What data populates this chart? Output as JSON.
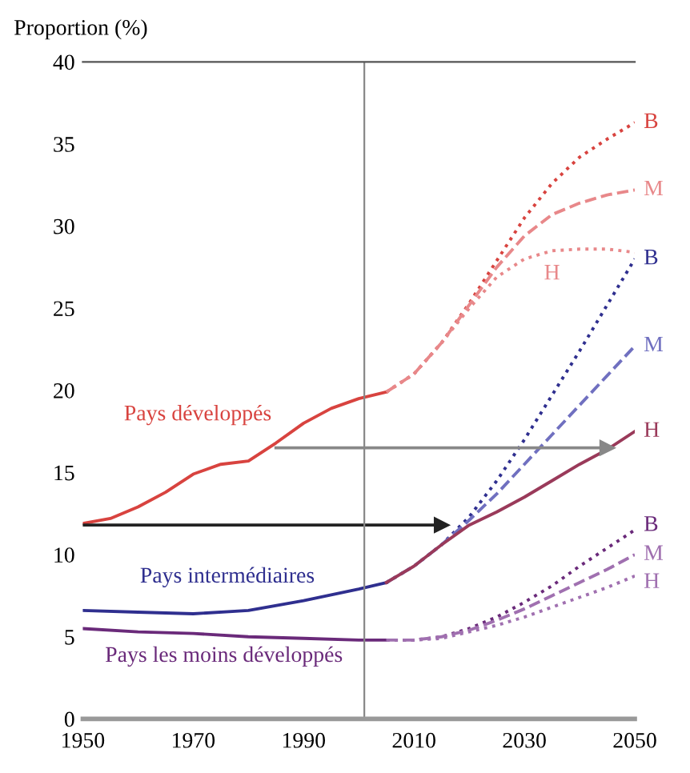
{
  "chart_data": {
    "type": "line",
    "ylabel": "Proportion (%)",
    "xlim": [
      1950,
      2050
    ],
    "ylim": [
      0,
      40
    ],
    "xticks": [
      1950,
      1970,
      1990,
      2010,
      2030,
      2050
    ],
    "yticks": [
      0,
      5,
      10,
      15,
      20,
      25,
      30,
      35,
      40
    ],
    "grid": false,
    "legend": false,
    "series": [
      {
        "name": "Pays développés",
        "color": "#d8433f",
        "line_style": "solid",
        "x": [
          1950,
          1955,
          1960,
          1965,
          1970,
          1975,
          1980,
          1985,
          1990,
          1995,
          2000,
          2005
        ],
        "values": [
          11.9,
          12.2,
          12.9,
          13.8,
          14.9,
          15.5,
          15.7,
          16.8,
          18.0,
          18.9,
          19.5,
          19.9
        ]
      },
      {
        "name": "B",
        "color": "#d8433f",
        "line_style": "dotted",
        "x": [
          2005,
          2010,
          2015,
          2020,
          2025,
          2030,
          2035,
          2040,
          2045,
          2050
        ],
        "values": [
          19.9,
          21.0,
          22.9,
          25.3,
          27.9,
          30.5,
          32.6,
          34.2,
          35.3,
          36.3
        ]
      },
      {
        "name": "M",
        "color": "#e8888a",
        "line_style": "dashed",
        "x": [
          2005,
          2010,
          2015,
          2020,
          2025,
          2030,
          2035,
          2040,
          2045,
          2050
        ],
        "values": [
          19.9,
          21.0,
          22.9,
          25.2,
          27.5,
          29.4,
          30.7,
          31.4,
          31.9,
          32.2
        ]
      },
      {
        "name": "H",
        "color": "#e8888a",
        "line_style": "dotted",
        "x": [
          2005,
          2010,
          2015,
          2020,
          2025,
          2030,
          2035,
          2040,
          2045,
          2050
        ],
        "values": [
          19.9,
          21.0,
          22.9,
          25.0,
          26.9,
          28.0,
          28.5,
          28.6,
          28.6,
          28.4
        ]
      },
      {
        "name": "Pays intermédiaires",
        "color": "#2f2f8f",
        "line_style": "solid",
        "x": [
          1950,
          1960,
          1970,
          1980,
          1990,
          2000,
          2005
        ],
        "values": [
          6.6,
          6.5,
          6.4,
          6.6,
          7.2,
          7.9,
          8.3
        ]
      },
      {
        "name": "B",
        "color": "#2f2f8f",
        "line_style": "dotted",
        "x": [
          2005,
          2010,
          2015,
          2020,
          2025,
          2030,
          2035,
          2040,
          2045,
          2050
        ],
        "values": [
          8.3,
          9.3,
          10.6,
          12.3,
          14.5,
          17.0,
          19.7,
          22.4,
          25.2,
          28.0
        ]
      },
      {
        "name": "M",
        "color": "#7070c0",
        "line_style": "dashed",
        "x": [
          2005,
          2010,
          2015,
          2020,
          2025,
          2030,
          2035,
          2040,
          2045,
          2050
        ],
        "values": [
          8.3,
          9.3,
          10.6,
          12.1,
          13.7,
          15.5,
          17.3,
          19.1,
          20.9,
          22.7
        ]
      },
      {
        "name": "H",
        "color": "#9a3a5a",
        "line_style": "solid",
        "x": [
          2005,
          2010,
          2015,
          2020,
          2025,
          2030,
          2035,
          2040,
          2045,
          2050
        ],
        "values": [
          8.3,
          9.3,
          10.6,
          11.8,
          12.6,
          13.5,
          14.5,
          15.5,
          16.4,
          17.5
        ]
      },
      {
        "name": "Pays les moins développés",
        "color": "#6a2a7a",
        "line_style": "solid",
        "x": [
          1950,
          1960,
          1970,
          1980,
          1990,
          2000,
          2005
        ],
        "values": [
          5.5,
          5.3,
          5.2,
          5.0,
          4.9,
          4.8,
          4.8
        ]
      },
      {
        "name": "B",
        "color": "#6a2a7a",
        "line_style": "dotted",
        "x": [
          2005,
          2010,
          2015,
          2020,
          2025,
          2030,
          2035,
          2040,
          2045,
          2050
        ],
        "values": [
          4.8,
          4.8,
          5.0,
          5.5,
          6.2,
          7.1,
          8.1,
          9.3,
          10.4,
          11.5
        ]
      },
      {
        "name": "M",
        "color": "#a070b0",
        "line_style": "dashed",
        "x": [
          2005,
          2010,
          2015,
          2020,
          2025,
          2030,
          2035,
          2040,
          2045,
          2050
        ],
        "values": [
          4.8,
          4.8,
          5.0,
          5.4,
          6.0,
          6.7,
          7.5,
          8.3,
          9.1,
          10.0
        ]
      },
      {
        "name": "H",
        "color": "#a070b0",
        "line_style": "dotted",
        "x": [
          2005,
          2010,
          2015,
          2020,
          2025,
          2030,
          2035,
          2040,
          2045,
          2050
        ],
        "values": [
          4.8,
          4.8,
          4.9,
          5.3,
          5.7,
          6.2,
          6.8,
          7.4,
          8.0,
          8.7
        ]
      },
      {
        "color": "#222222",
        "line_style": "solid",
        "marker": "triangle",
        "x": [
          1950,
          2015
        ],
        "values": [
          11.8,
          11.8
        ]
      },
      {
        "color": "#888888",
        "line_style": "solid",
        "marker": "triangle",
        "x": [
          1985,
          2045
        ],
        "values": [
          16.5,
          16.5
        ]
      }
    ],
    "ref_lines": [
      {
        "axis": "x",
        "value": 2001,
        "color": "#888888"
      }
    ]
  }
}
